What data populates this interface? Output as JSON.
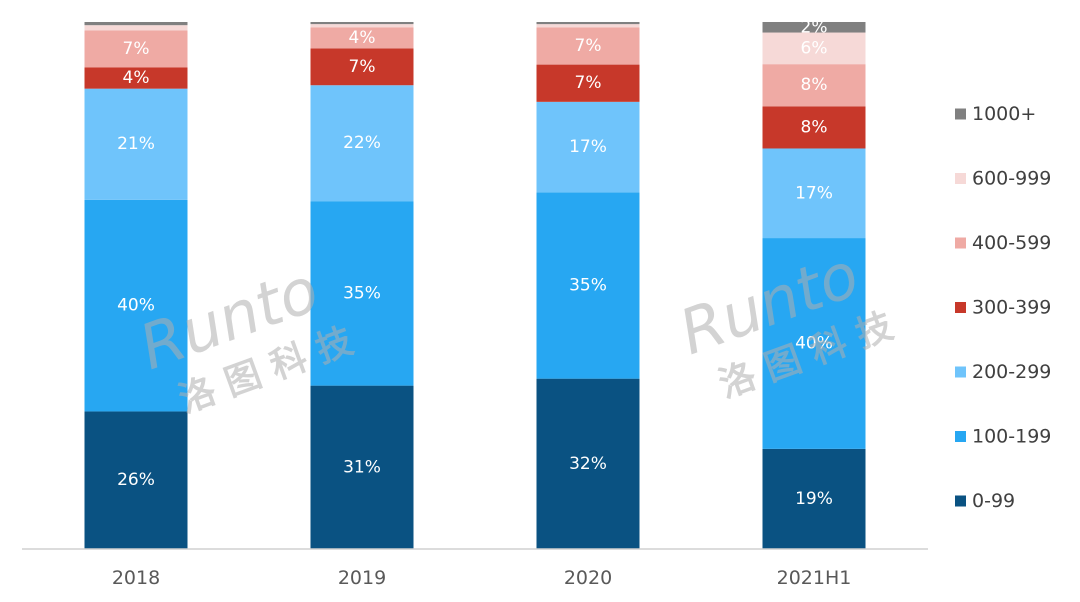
{
  "chart_data": {
    "type": "bar",
    "stacked": true,
    "normalized": true,
    "categories": [
      "2018",
      "2019",
      "2020",
      "2021H1"
    ],
    "series": [
      {
        "name": "0-99",
        "color": "#0a5282",
        "values": [
          26,
          31,
          32,
          19
        ],
        "labels": [
          "26%",
          "31%",
          "32%",
          "19%"
        ]
      },
      {
        "name": "100-199",
        "color": "#27a7f2",
        "values": [
          40,
          35,
          35,
          40
        ],
        "labels": [
          "40%",
          "35%",
          "35%",
          "40%"
        ]
      },
      {
        "name": "200-299",
        "color": "#6fc4fb",
        "values": [
          21,
          22,
          17,
          17
        ],
        "labels": [
          "21%",
          "22%",
          "17%",
          "17%"
        ]
      },
      {
        "name": "300-399",
        "color": "#c7382a",
        "values": [
          4,
          7,
          7,
          8
        ],
        "labels": [
          "4%",
          "7%",
          "7%",
          "8%"
        ]
      },
      {
        "name": "400-599",
        "color": "#efaaa4",
        "values": [
          7,
          4,
          7,
          8
        ],
        "labels": [
          "7%",
          "4%",
          "7%",
          "8%"
        ]
      },
      {
        "name": "600-999",
        "color": "#f6d9d7",
        "values": [
          1,
          0.6,
          0.6,
          6
        ],
        "labels": [
          "",
          "",
          "",
          "6%"
        ]
      },
      {
        "name": "1000+",
        "color": "#808080",
        "values": [
          0.6,
          0.4,
          0.4,
          2
        ],
        "labels": [
          "",
          "",
          "",
          "2%"
        ]
      }
    ],
    "ylim": [
      0,
      100
    ],
    "legend": {
      "position": "right",
      "order": "reverse"
    },
    "grid": false
  },
  "watermark": {
    "latin": "Runto",
    "cjk": "洛 图 科 技"
  }
}
